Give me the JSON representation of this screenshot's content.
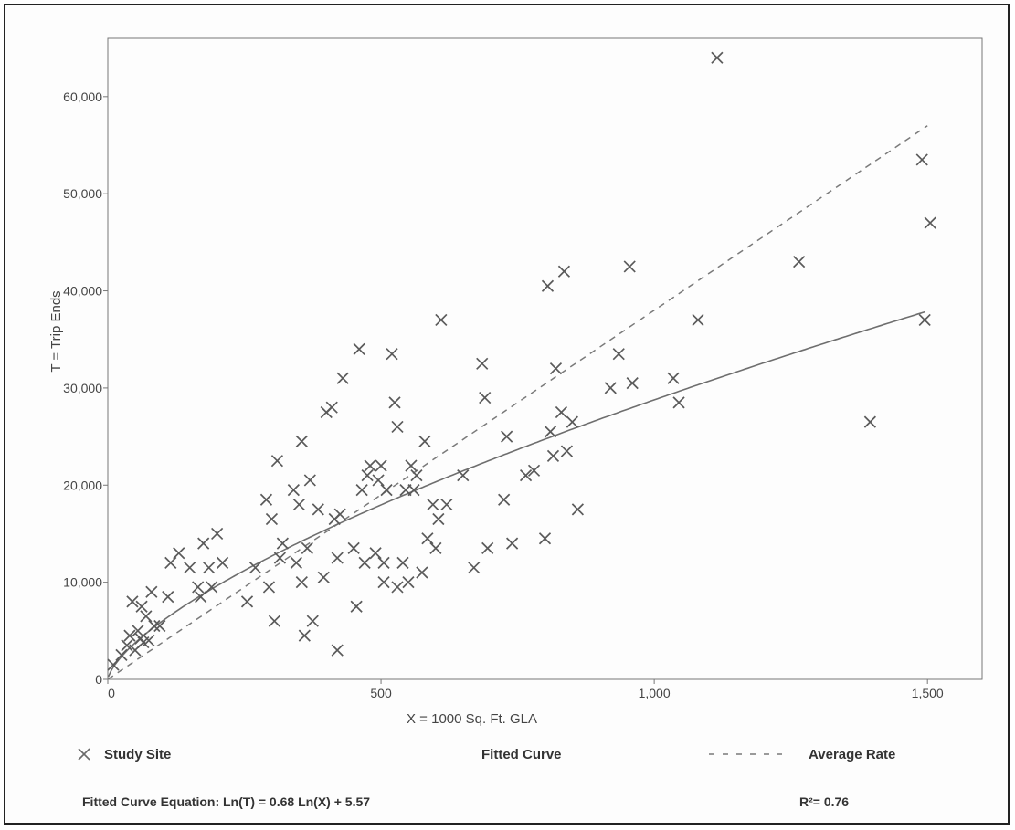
{
  "chart_data": {
    "type": "scatter",
    "title": "",
    "xlabel": "X = 1000 Sq. Ft. GLA",
    "ylabel": "T = Trip Ends",
    "xlim": [
      0,
      1600
    ],
    "ylim": [
      0,
      66000
    ],
    "x_ticks": [
      0,
      500,
      1000,
      1500
    ],
    "x_tick_labels": [
      "0",
      "500",
      "1,000",
      "1,500"
    ],
    "y_ticks": [
      0,
      10000,
      20000,
      30000,
      40000,
      50000,
      60000
    ],
    "y_tick_labels": [
      "0",
      "10,000",
      "20,000",
      "30,000",
      "40,000",
      "50,000",
      "60,000"
    ],
    "grid": false,
    "series": [
      {
        "name": "Study Site",
        "style": "x-marker",
        "points": [
          [
            10,
            1500
          ],
          [
            25,
            2500
          ],
          [
            35,
            3500
          ],
          [
            40,
            4500
          ],
          [
            45,
            8000
          ],
          [
            50,
            3000
          ],
          [
            55,
            5000
          ],
          [
            60,
            4200
          ],
          [
            62,
            7500
          ],
          [
            65,
            3800
          ],
          [
            70,
            6500
          ],
          [
            75,
            4000
          ],
          [
            80,
            9000
          ],
          [
            85,
            5500
          ],
          [
            95,
            5500
          ],
          [
            110,
            8500
          ],
          [
            115,
            12000
          ],
          [
            130,
            13000
          ],
          [
            150,
            11500
          ],
          [
            165,
            9500
          ],
          [
            170,
            8500
          ],
          [
            175,
            14000
          ],
          [
            185,
            11500
          ],
          [
            190,
            9500
          ],
          [
            200,
            15000
          ],
          [
            210,
            12000
          ],
          [
            255,
            8000
          ],
          [
            270,
            11500
          ],
          [
            290,
            18500
          ],
          [
            295,
            9500
          ],
          [
            300,
            16500
          ],
          [
            305,
            6000
          ],
          [
            310,
            22500
          ],
          [
            315,
            12500
          ],
          [
            320,
            14000
          ],
          [
            340,
            19500
          ],
          [
            345,
            12000
          ],
          [
            350,
            18000
          ],
          [
            355,
            10000
          ],
          [
            355,
            24500
          ],
          [
            360,
            4500
          ],
          [
            365,
            13500
          ],
          [
            370,
            20500
          ],
          [
            375,
            6000
          ],
          [
            385,
            17500
          ],
          [
            395,
            10500
          ],
          [
            400,
            27500
          ],
          [
            410,
            28000
          ],
          [
            415,
            16500
          ],
          [
            420,
            12500
          ],
          [
            420,
            3000
          ],
          [
            425,
            17000
          ],
          [
            430,
            31000
          ],
          [
            450,
            13500
          ],
          [
            455,
            7500
          ],
          [
            460,
            34000
          ],
          [
            465,
            19500
          ],
          [
            470,
            12000
          ],
          [
            475,
            21000
          ],
          [
            480,
            22000
          ],
          [
            490,
            13000
          ],
          [
            495,
            20500
          ],
          [
            500,
            22000
          ],
          [
            505,
            10000
          ],
          [
            505,
            12000
          ],
          [
            510,
            19500
          ],
          [
            520,
            33500
          ],
          [
            525,
            28500
          ],
          [
            530,
            9500
          ],
          [
            530,
            26000
          ],
          [
            540,
            12000
          ],
          [
            545,
            19500
          ],
          [
            550,
            10000
          ],
          [
            555,
            22000
          ],
          [
            560,
            19500
          ],
          [
            565,
            21000
          ],
          [
            575,
            11000
          ],
          [
            580,
            24500
          ],
          [
            585,
            14500
          ],
          [
            595,
            18000
          ],
          [
            600,
            13500
          ],
          [
            605,
            16500
          ],
          [
            610,
            37000
          ],
          [
            620,
            18000
          ],
          [
            650,
            21000
          ],
          [
            670,
            11500
          ],
          [
            685,
            32500
          ],
          [
            690,
            29000
          ],
          [
            695,
            13500
          ],
          [
            725,
            18500
          ],
          [
            730,
            25000
          ],
          [
            740,
            14000
          ],
          [
            765,
            21000
          ],
          [
            780,
            21500
          ],
          [
            800,
            14500
          ],
          [
            805,
            40500
          ],
          [
            810,
            25500
          ],
          [
            815,
            23000
          ],
          [
            820,
            32000
          ],
          [
            830,
            27500
          ],
          [
            835,
            42000
          ],
          [
            840,
            23500
          ],
          [
            850,
            26500
          ],
          [
            860,
            17500
          ],
          [
            920,
            30000
          ],
          [
            935,
            33500
          ],
          [
            955,
            42500
          ],
          [
            960,
            30500
          ],
          [
            1035,
            31000
          ],
          [
            1045,
            28500
          ],
          [
            1080,
            37000
          ],
          [
            1115,
            64000
          ],
          [
            1265,
            43000
          ],
          [
            1395,
            26500
          ],
          [
            1490,
            53500
          ],
          [
            1495,
            37000
          ],
          [
            1505,
            47000
          ]
        ]
      },
      {
        "name": "Fitted Curve",
        "style": "solid",
        "equation": "Ln(T) = 0.68 Ln(X) + 5.57",
        "coef": 0.68,
        "intercept": 5.57
      },
      {
        "name": "Average Rate",
        "style": "dashed",
        "rate": 38.0
      }
    ],
    "legend": [
      "Study Site",
      "Fitted Curve",
      "Average Rate"
    ],
    "legend_position": "bottom",
    "annotations": {
      "equation": "Fitted Curve Equation: Ln(T) = 0.68 Ln(X) + 5.57",
      "r_squared": "R²= 0.76"
    }
  },
  "colors": {
    "marker": "#5a5a5a",
    "curve": "#6e6e6e",
    "dashed": "#7a7a7a",
    "axis": "#777777",
    "text": "#444444"
  }
}
